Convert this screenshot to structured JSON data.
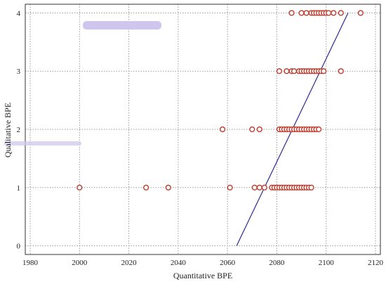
{
  "chart_data": {
    "type": "scatter",
    "xlabel": "Quantitative BPE",
    "ylabel": "Qualitative BPE",
    "xlim": [
      1978,
      2122
    ],
    "ylim": [
      -0.15,
      4.15
    ],
    "x_ticks": [
      1980,
      2000,
      2020,
      2040,
      2060,
      2080,
      2100,
      2120
    ],
    "y_ticks": [
      0,
      1,
      2,
      3,
      4
    ],
    "grid": true,
    "marker_color": "#c0392b",
    "fit_line_color": "#2e2a8f",
    "points_by_level": [
      {
        "y": 1,
        "x": [
          2000,
          2027,
          2036,
          2061,
          2071,
          2073,
          2075,
          2078,
          2079,
          2080,
          2081,
          2082,
          2083,
          2084,
          2085,
          2086,
          2087,
          2088,
          2089,
          2090,
          2091,
          2092,
          2093,
          2094
        ]
      },
      {
        "y": 2,
        "x": [
          2058,
          2070,
          2073,
          2081,
          2082,
          2083,
          2084,
          2085,
          2086,
          2087,
          2088,
          2089,
          2090,
          2091,
          2092,
          2093,
          2094,
          2095,
          2096,
          2097
        ]
      },
      {
        "y": 3,
        "x": [
          2081,
          2084,
          2086,
          2087,
          2089,
          2090,
          2091,
          2092,
          2093,
          2094,
          2095,
          2096,
          2097,
          2098,
          2099,
          2106
        ]
      },
      {
        "y": 4,
        "x": [
          2086,
          2090,
          2092,
          2094,
          2095,
          2096,
          2097,
          2098,
          2099,
          2100,
          2101,
          2103,
          2106,
          2114
        ]
      }
    ],
    "fit_line": {
      "x": [
        2063.7,
        2108.9
      ],
      "y": [
        0.0,
        4.0
      ]
    }
  }
}
